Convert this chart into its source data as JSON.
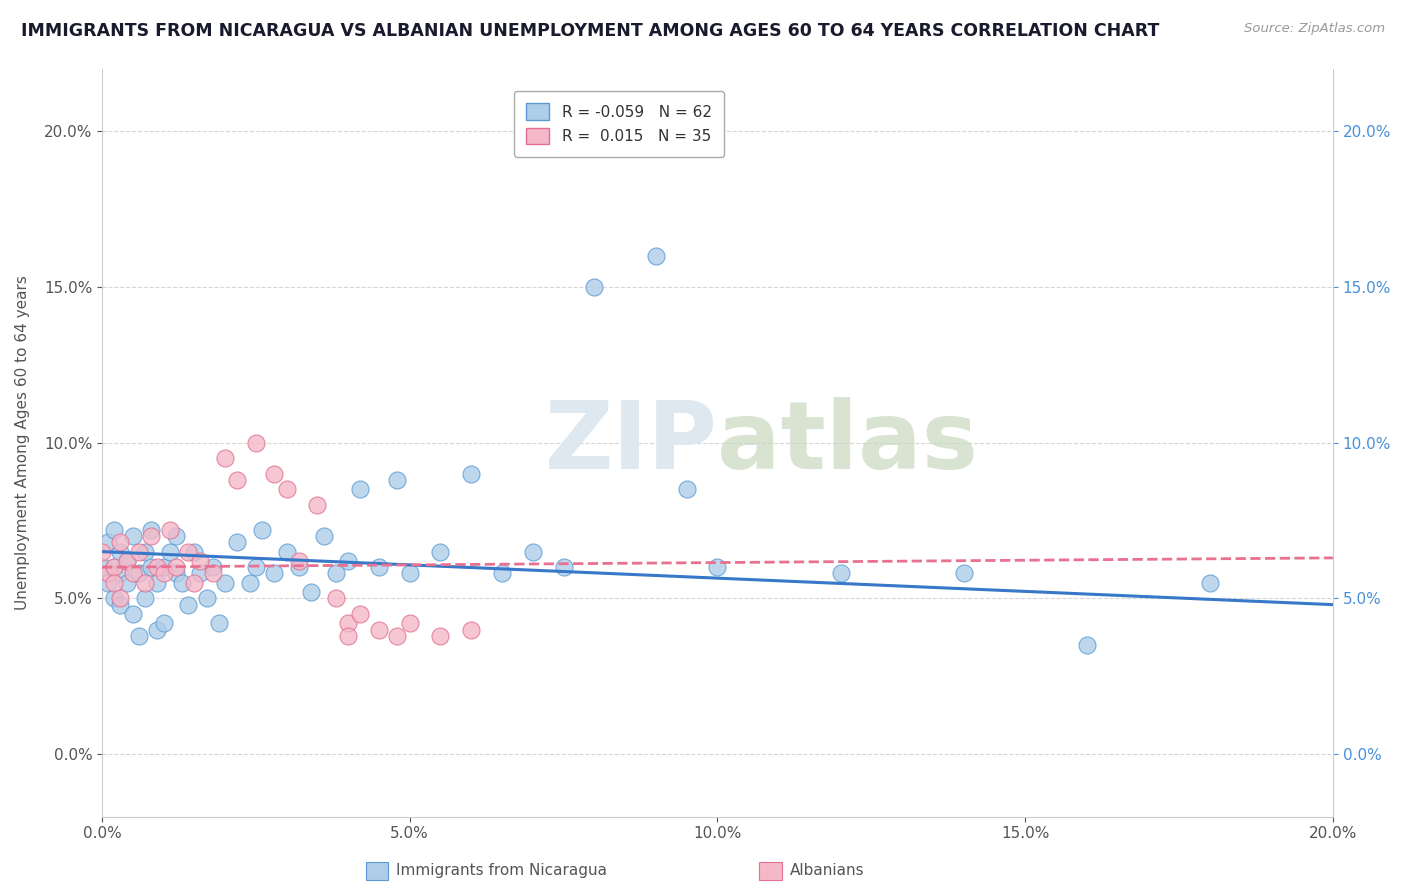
{
  "title": "IMMIGRANTS FROM NICARAGUA VS ALBANIAN UNEMPLOYMENT AMONG AGES 60 TO 64 YEARS CORRELATION CHART",
  "source": "Source: ZipAtlas.com",
  "ylabel": "Unemployment Among Ages 60 to 64 years",
  "xlim": [
    0.0,
    0.2
  ],
  "ylim": [
    -0.02,
    0.22
  ],
  "yticks": [
    0.0,
    0.05,
    0.1,
    0.15,
    0.2
  ],
  "xticks": [
    0.0,
    0.05,
    0.1,
    0.15,
    0.2
  ],
  "nicaragua_R": "-0.059",
  "nicaragua_N": "62",
  "albanian_R": "0.015",
  "albanian_N": "35",
  "nicaragua_color": "#aecde8",
  "albanian_color": "#f5b8c8",
  "nicaragua_edge_color": "#5b9bd5",
  "albanian_edge_color": "#e07090",
  "nicaragua_line_color": "#3878c8",
  "albanian_line_color": "#e87090",
  "watermark_color": "#dde8f0",
  "nicaragua_scatter_x": [
    0.0,
    0.001,
    0.001,
    0.002,
    0.002,
    0.002,
    0.003,
    0.003,
    0.003,
    0.004,
    0.004,
    0.005,
    0.005,
    0.006,
    0.006,
    0.007,
    0.007,
    0.008,
    0.008,
    0.009,
    0.009,
    0.01,
    0.01,
    0.011,
    0.012,
    0.012,
    0.013,
    0.014,
    0.015,
    0.016,
    0.017,
    0.018,
    0.019,
    0.02,
    0.022,
    0.024,
    0.025,
    0.026,
    0.028,
    0.03,
    0.032,
    0.034,
    0.036,
    0.038,
    0.04,
    0.042,
    0.045,
    0.048,
    0.05,
    0.055,
    0.06,
    0.065,
    0.07,
    0.075,
    0.08,
    0.09,
    0.095,
    0.1,
    0.12,
    0.14,
    0.16,
    0.18
  ],
  "nicaragua_scatter_y": [
    0.06,
    0.055,
    0.068,
    0.06,
    0.05,
    0.072,
    0.058,
    0.065,
    0.048,
    0.055,
    0.062,
    0.07,
    0.045,
    0.058,
    0.038,
    0.05,
    0.065,
    0.06,
    0.072,
    0.055,
    0.04,
    0.06,
    0.042,
    0.065,
    0.058,
    0.07,
    0.055,
    0.048,
    0.065,
    0.058,
    0.05,
    0.06,
    0.042,
    0.055,
    0.068,
    0.055,
    0.06,
    0.072,
    0.058,
    0.065,
    0.06,
    0.052,
    0.07,
    0.058,
    0.062,
    0.085,
    0.06,
    0.088,
    0.058,
    0.065,
    0.09,
    0.058,
    0.065,
    0.06,
    0.15,
    0.16,
    0.085,
    0.06,
    0.058,
    0.058,
    0.035,
    0.055
  ],
  "albanian_scatter_x": [
    0.0,
    0.001,
    0.002,
    0.002,
    0.003,
    0.003,
    0.004,
    0.005,
    0.006,
    0.007,
    0.008,
    0.009,
    0.01,
    0.011,
    0.012,
    0.014,
    0.015,
    0.016,
    0.018,
    0.02,
    0.022,
    0.025,
    0.028,
    0.03,
    0.032,
    0.035,
    0.038,
    0.04,
    0.04,
    0.042,
    0.045,
    0.048,
    0.05,
    0.055,
    0.06
  ],
  "albanian_scatter_y": [
    0.065,
    0.058,
    0.06,
    0.055,
    0.068,
    0.05,
    0.062,
    0.058,
    0.065,
    0.055,
    0.07,
    0.06,
    0.058,
    0.072,
    0.06,
    0.065,
    0.055,
    0.062,
    0.058,
    0.095,
    0.088,
    0.1,
    0.09,
    0.085,
    0.062,
    0.08,
    0.05,
    0.042,
    0.038,
    0.045,
    0.04,
    0.038,
    0.042,
    0.038,
    0.04
  ],
  "nic_trend_x": [
    0.0,
    0.2
  ],
  "nic_trend_y": [
    0.065,
    0.048
  ],
  "alb_trend_x": [
    0.0,
    0.2
  ],
  "alb_trend_y": [
    0.06,
    0.063
  ]
}
